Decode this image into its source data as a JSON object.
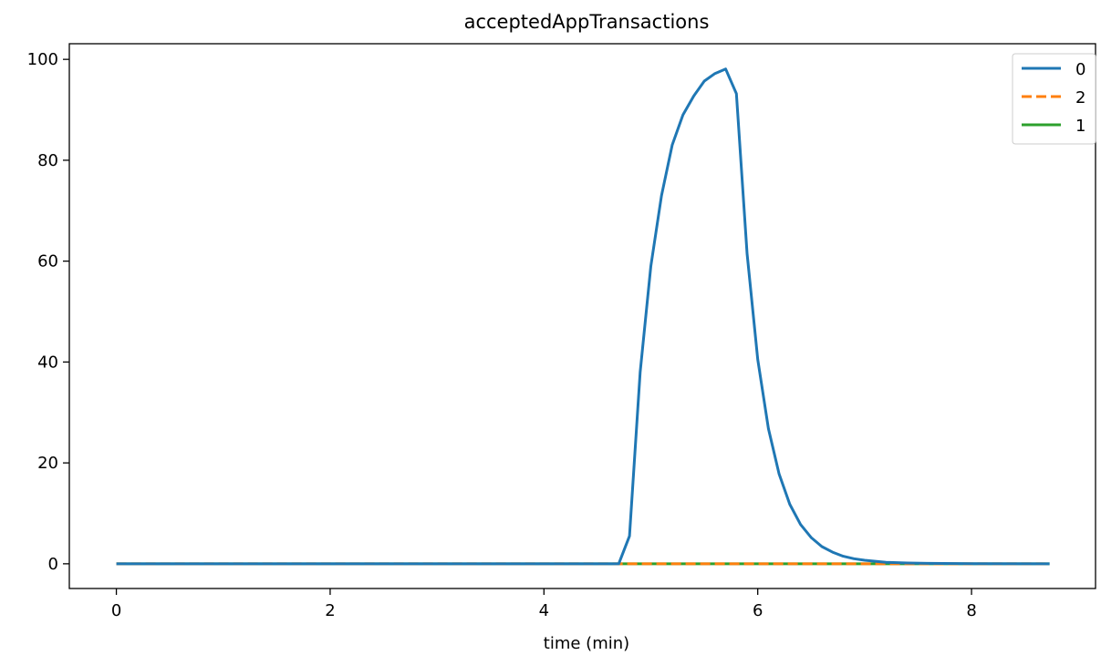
{
  "chart_data": {
    "type": "line",
    "title": "acceptedAppTransactions",
    "xlabel": "time (min)",
    "ylabel": "",
    "xlim": [
      -0.44,
      9.16
    ],
    "ylim": [
      -4.9,
      103.1
    ],
    "xticks": [
      0,
      2,
      4,
      6,
      8
    ],
    "yticks": [
      0,
      20,
      40,
      60,
      80,
      100
    ],
    "grid": false,
    "legend_position": "top-right",
    "series": [
      {
        "name": "0",
        "color": "#1f77b4",
        "dash": "solid",
        "x": [
          0,
          4.7,
          4.8,
          4.9,
          5.0,
          5.1,
          5.2,
          5.3,
          5.4,
          5.5,
          5.6,
          5.7,
          5.8,
          5.9,
          6.0,
          6.1,
          6.2,
          6.3,
          6.4,
          6.5,
          6.6,
          6.7,
          6.8,
          6.9,
          7.0,
          7.1,
          7.2,
          7.4,
          7.6,
          8.0,
          8.73
        ],
        "y": [
          0,
          0,
          5.5,
          38,
          59,
          73,
          83,
          89,
          92.7,
          95.7,
          97.2,
          98.1,
          93.2,
          61.5,
          40.5,
          26.8,
          17.8,
          11.8,
          7.8,
          5.2,
          3.4,
          2.3,
          1.5,
          1.0,
          0.7,
          0.5,
          0.3,
          0.15,
          0.08,
          0.02,
          0
        ]
      },
      {
        "name": "2",
        "color": "#ff7f0e",
        "dash": "dashed",
        "x": [
          0,
          8.73
        ],
        "y": [
          0,
          0
        ]
      },
      {
        "name": "1",
        "color": "#2ca02c",
        "dash": "solid",
        "x": [
          0,
          8.73
        ],
        "y": [
          0,
          0
        ]
      }
    ]
  }
}
